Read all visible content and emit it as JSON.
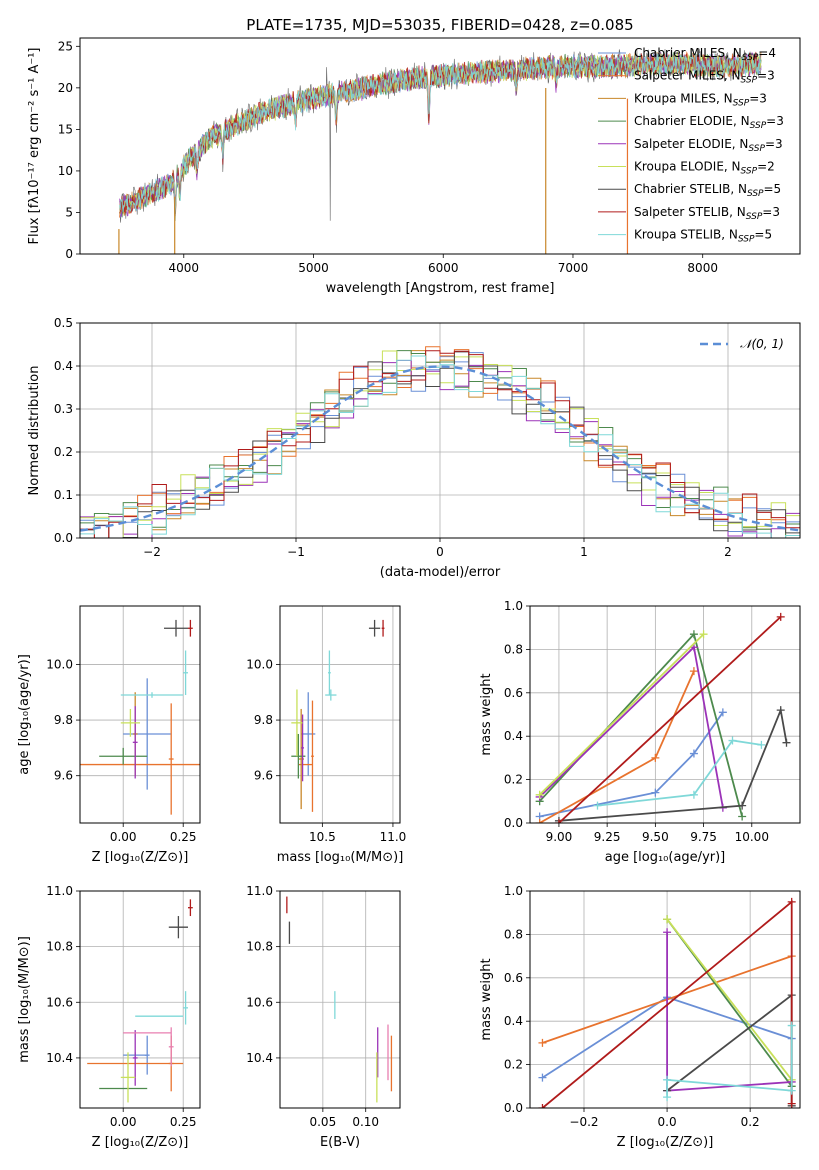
{
  "figure": {
    "title": "PLATE=1735, MJD=53035, FIBERID=0428, z=0.085"
  },
  "colors": {
    "Chabrier MILES": "#6a8fd6",
    "Salpeter MILES": "#e8732e",
    "Kroupa MILES": "#c8872a",
    "Chabrier ELODIE": "#4d8a4d",
    "Salpeter ELODIE": "#9b33b8",
    "Kroupa ELODIE": "#c8e05a",
    "Chabrier STELIB": "#4a4a4a",
    "Salpeter STELIB": "#b01b1b",
    "Kroupa STELIB": "#7fd8d8",
    "gaussian": "#5b8ed6",
    "grid": "#b0b0b0"
  },
  "chart_data": [
    {
      "id": "spectrum",
      "type": "line",
      "title": "PLATE=1735, MJD=53035, FIBERID=0428, z=0.085",
      "xlabel": "wavelength [Angstrom, rest frame]",
      "ylabel": "Flux [fλ10⁻¹⁷ erg cm⁻² s⁻¹ A⁻¹]",
      "xlim": [
        3200,
        8750
      ],
      "ylim": [
        0,
        26
      ],
      "xticks": [
        "4000",
        "5000",
        "6000",
        "7000",
        "8000"
      ],
      "yticks": [
        "0",
        "5",
        "10",
        "15",
        "20",
        "25"
      ],
      "grid": false,
      "legend_position": "right",
      "legend": [
        {
          "label": "Chabrier MILES, N",
          "sub": "SSP",
          "tail": "=4",
          "color": "#6a8fd6"
        },
        {
          "label": "Salpeter MILES, N",
          "sub": "SSP",
          "tail": "=3",
          "color": "#e8732e"
        },
        {
          "label": "Kroupa MILES, N",
          "sub": "SSP",
          "tail": "=3",
          "color": "#c8872a"
        },
        {
          "label": "Chabrier ELODIE, N",
          "sub": "SSP",
          "tail": "=3",
          "color": "#4d8a4d"
        },
        {
          "label": "Salpeter ELODIE, N",
          "sub": "SSP",
          "tail": "=3",
          "color": "#9b33b8"
        },
        {
          "label": "Kroupa ELODIE, N",
          "sub": "SSP",
          "tail": "=2",
          "color": "#c8e05a"
        },
        {
          "label": "Chabrier STELIB, N",
          "sub": "SSP",
          "tail": "=5",
          "color": "#4a4a4a"
        },
        {
          "label": "Salpeter STELIB, N",
          "sub": "SSP",
          "tail": "=3",
          "color": "#b01b1b"
        },
        {
          "label": "Kroupa STELIB, N",
          "sub": "SSP",
          "tail": "=5",
          "color": "#7fd8d8"
        }
      ],
      "continuum": {
        "x": [
          3500,
          3700,
          3900,
          4050,
          4200,
          4400,
          4600,
          4800,
          5000,
          5200,
          5400,
          5600,
          5800,
          6000,
          6200,
          6400,
          6600,
          6800,
          7000,
          7200,
          7400,
          7600,
          7800,
          8000,
          8200,
          8400
        ],
        "y": [
          5.5,
          7.0,
          8.5,
          11.5,
          14.0,
          15.5,
          17.0,
          18.0,
          18.8,
          19.3,
          20.0,
          20.7,
          21.2,
          21.5,
          21.8,
          22.0,
          22.2,
          22.5,
          22.6,
          22.6,
          22.7,
          22.8,
          22.9,
          22.7,
          22.6,
          22.9
        ]
      },
      "absorption_dips": [
        [
          3934,
          4
        ],
        [
          3969,
          3
        ],
        [
          4102,
          2.5
        ],
        [
          4300,
          3
        ],
        [
          4861,
          2
        ],
        [
          5175,
          3
        ],
        [
          5890,
          5
        ],
        [
          6563,
          2
        ],
        [
          6870,
          2
        ]
      ],
      "spikes": [
        [
          5130,
          3
        ],
        [
          5100,
          21.5
        ],
        [
          6620,
          22.7
        ]
      ]
    },
    {
      "id": "residuals",
      "type": "line",
      "xlabel": "(data-model)/error",
      "ylabel": "Normed distribution",
      "xlim": [
        -2.5,
        2.5
      ],
      "ylim": [
        0,
        0.5
      ],
      "xticks": [
        "−2",
        "−1",
        "0",
        "1",
        "2"
      ],
      "yticks": [
        "0.0",
        "0.1",
        "0.2",
        "0.3",
        "0.4",
        "0.5"
      ],
      "grid": true,
      "legend_position": "top-right",
      "legend": [
        {
          "label": "𝒩(0, 1)",
          "style": "dashed",
          "color": "#5b8ed6"
        }
      ],
      "series": [
        {
          "color": "#6a8fd6",
          "shift": 0.0,
          "phase": 0.0
        },
        {
          "color": "#e8732e",
          "shift": 0.01,
          "phase": 1.1
        },
        {
          "color": "#c8872a",
          "shift": -0.005,
          "phase": 2.3
        },
        {
          "color": "#4d8a4d",
          "shift": 0.005,
          "phase": 3.1
        },
        {
          "color": "#9b33b8",
          "shift": -0.01,
          "phase": 4.2
        },
        {
          "color": "#c8e05a",
          "shift": 0.008,
          "phase": 5.0
        },
        {
          "color": "#4a4a4a",
          "shift": -0.003,
          "phase": 5.8
        },
        {
          "color": "#b01b1b",
          "shift": 0.012,
          "phase": 0.6
        },
        {
          "color": "#7fd8d8",
          "shift": -0.008,
          "phase": 2.9
        }
      ]
    },
    {
      "id": "age-vs-Z",
      "type": "scatter",
      "xlabel": "Z [log₁₀(Z/Z⊙)]",
      "ylabel": "age  [log₁₀(age/yr)]",
      "xlim": [
        -0.18,
        0.32
      ],
      "ylim": [
        9.43,
        10.21
      ],
      "xticks": [
        "0.00",
        "0.25"
      ],
      "yticks": [
        "9.6",
        "9.8",
        "10.0"
      ],
      "grid": true,
      "points": [
        {
          "x": 0.1,
          "y": 9.75,
          "xerr": 0.1,
          "yerr": 0.2,
          "color": "#6a8fd6"
        },
        {
          "x": 0.1,
          "y": 9.64,
          "xerr": 0.3,
          "yerr": 0.0,
          "color": "#e8732e"
        },
        {
          "x": 0.2,
          "y": 9.66,
          "xerr": 0.01,
          "yerr": 0.2,
          "color": "#e8732e"
        },
        {
          "x": 0.05,
          "y": 9.75,
          "xerr": 0.01,
          "yerr": 0.15,
          "color": "#c8872a"
        },
        {
          "x": 0.0,
          "y": 9.67,
          "xerr": 0.1,
          "yerr": 0.03,
          "color": "#4d8a4d"
        },
        {
          "x": 0.05,
          "y": 9.72,
          "xerr": 0.01,
          "yerr": 0.13,
          "color": "#9b33b8"
        },
        {
          "x": 0.03,
          "y": 9.79,
          "xerr": 0.04,
          "yerr": 0.05,
          "color": "#c8e05a"
        },
        {
          "x": 0.22,
          "y": 10.13,
          "xerr": 0.05,
          "yerr": 0.03,
          "color": "#4a4a4a"
        },
        {
          "x": 0.28,
          "y": 10.13,
          "xerr": 0.01,
          "yerr": 0.03,
          "color": "#b01b1b"
        },
        {
          "x": 0.12,
          "y": 9.89,
          "xerr": 0.13,
          "yerr": 0.01,
          "color": "#7fd8d8"
        },
        {
          "x": 0.26,
          "y": 9.97,
          "xerr": 0.01,
          "yerr": 0.08,
          "color": "#7fd8d8"
        }
      ]
    },
    {
      "id": "age-vs-mass",
      "type": "scatter",
      "xlabel": "mass [log₁₀(M/M⊙)]",
      "xlim": [
        10.2,
        11.05
      ],
      "ylim": [
        9.43,
        10.21
      ],
      "xticks": [
        "10.5",
        "11.0"
      ],
      "yticks": [
        "9.6",
        "9.8",
        "10.0"
      ],
      "grid": true,
      "points": [
        {
          "x": 10.4,
          "y": 9.75,
          "xerr": 0.05,
          "yerr": 0.15,
          "color": "#6a8fd6"
        },
        {
          "x": 10.38,
          "y": 9.64,
          "xerr": 0.05,
          "yerr": 0.0,
          "color": "#e8732e"
        },
        {
          "x": 10.43,
          "y": 9.67,
          "xerr": 0.01,
          "yerr": 0.2,
          "color": "#e8732e"
        },
        {
          "x": 10.35,
          "y": 9.66,
          "xerr": 0.02,
          "yerr": 0.18,
          "color": "#c8872a"
        },
        {
          "x": 10.33,
          "y": 9.67,
          "xerr": 0.05,
          "yerr": 0.08,
          "color": "#4d8a4d"
        },
        {
          "x": 10.36,
          "y": 9.7,
          "xerr": 0.01,
          "yerr": 0.12,
          "color": "#9b33b8"
        },
        {
          "x": 10.32,
          "y": 9.79,
          "xerr": 0.04,
          "yerr": 0.12,
          "color": "#c8e05a"
        },
        {
          "x": 10.87,
          "y": 10.13,
          "xerr": 0.04,
          "yerr": 0.03,
          "color": "#4a4a4a"
        },
        {
          "x": 10.93,
          "y": 10.13,
          "xerr": 0.01,
          "yerr": 0.03,
          "color": "#b01b1b"
        },
        {
          "x": 10.56,
          "y": 9.89,
          "xerr": 0.04,
          "yerr": 0.02,
          "color": "#7fd8d8"
        },
        {
          "x": 10.55,
          "y": 9.97,
          "xerr": 0.01,
          "yerr": 0.08,
          "color": "#7fd8d8"
        }
      ]
    },
    {
      "id": "massweight-vs-age",
      "type": "line",
      "xlabel": "age  [log₁₀(age/yr)]",
      "ylabel": "mass weight",
      "xlim": [
        8.85,
        10.25
      ],
      "ylim": [
        0,
        1
      ],
      "xticks": [
        "9.00",
        "9.25",
        "9.50",
        "9.75",
        "10.00"
      ],
      "yticks": [
        "0.0",
        "0.2",
        "0.4",
        "0.6",
        "0.8",
        "1.0"
      ],
      "grid": true,
      "series": [
        {
          "color": "#6a8fd6",
          "x": [
            8.9,
            9.5,
            9.7,
            9.85
          ],
          "y": [
            0.03,
            0.14,
            0.32,
            0.51
          ]
        },
        {
          "color": "#e8732e",
          "x": [
            8.9,
            9.5,
            9.7
          ],
          "y": [
            0.0,
            0.3,
            0.7
          ]
        },
        {
          "color": "#4d8a4d",
          "x": [
            8.9,
            9.7,
            9.95
          ],
          "y": [
            0.1,
            0.87,
            0.03
          ]
        },
        {
          "color": "#9b33b8",
          "x": [
            8.9,
            9.7,
            9.85
          ],
          "y": [
            0.12,
            0.81,
            0.07
          ]
        },
        {
          "color": "#c8e05a",
          "x": [
            8.9,
            9.75
          ],
          "y": [
            0.13,
            0.87
          ]
        },
        {
          "color": "#4a4a4a",
          "x": [
            9.0,
            9.95,
            10.15,
            10.18
          ],
          "y": [
            0.01,
            0.08,
            0.52,
            0.37
          ]
        },
        {
          "color": "#b01b1b",
          "x": [
            9.0,
            10.15
          ],
          "y": [
            0.0,
            0.95
          ]
        },
        {
          "color": "#7fd8d8",
          "x": [
            9.2,
            9.7,
            9.9,
            10.05
          ],
          "y": [
            0.08,
            0.13,
            0.38,
            0.36
          ]
        }
      ]
    },
    {
      "id": "mass-vs-Z",
      "type": "scatter",
      "xlabel": "Z [log₁₀(Z/Z⊙)]",
      "ylabel": "mass [log₁₀(M/M⊙)]",
      "xlim": [
        -0.18,
        0.32
      ],
      "ylim": [
        10.22,
        11.0
      ],
      "xticks": [
        "0.00",
        "0.25"
      ],
      "yticks": [
        "10.4",
        "10.6",
        "10.8",
        "11.0"
      ],
      "grid": true,
      "points": [
        {
          "x": 0.05,
          "y": 10.41,
          "xerr": 0.05,
          "yerr": 0.01,
          "color": "#6a8fd6"
        },
        {
          "x": 0.1,
          "y": 10.41,
          "xerr": 0.01,
          "yerr": 0.07,
          "color": "#6a8fd6"
        },
        {
          "x": 0.05,
          "y": 10.38,
          "xerr": 0.2,
          "yerr": 0.0,
          "color": "#e8732e"
        },
        {
          "x": 0.2,
          "y": 10.38,
          "xerr": 0.01,
          "yerr": 0.1,
          "color": "#e8732e"
        },
        {
          "x": 0.0,
          "y": 10.29,
          "xerr": 0.1,
          "yerr": 0.0,
          "color": "#4d8a4d"
        },
        {
          "x": 0.05,
          "y": 10.4,
          "xerr": 0.01,
          "yerr": 0.1,
          "color": "#9b33b8"
        },
        {
          "x": 0.1,
          "y": 10.49,
          "xerr": 0.1,
          "yerr": 0.0,
          "color": "#e87fb0"
        },
        {
          "x": 0.2,
          "y": 10.44,
          "xerr": 0.01,
          "yerr": 0.07,
          "color": "#e87fb0"
        },
        {
          "x": 0.02,
          "y": 10.33,
          "xerr": 0.03,
          "yerr": 0.09,
          "color": "#c8e05a"
        },
        {
          "x": 0.23,
          "y": 10.87,
          "xerr": 0.04,
          "yerr": 0.04,
          "color": "#4a4a4a"
        },
        {
          "x": 0.28,
          "y": 10.94,
          "xerr": 0.01,
          "yerr": 0.03,
          "color": "#b01b1b"
        },
        {
          "x": 0.15,
          "y": 10.55,
          "xerr": 0.1,
          "yerr": 0.0,
          "color": "#7fd8d8"
        },
        {
          "x": 0.26,
          "y": 10.58,
          "xerr": 0.01,
          "yerr": 0.06,
          "color": "#7fd8d8"
        }
      ]
    },
    {
      "id": "mass-vs-ebv",
      "type": "scatter",
      "xlabel": "E(B-V)",
      "xlim": [
        0.0,
        0.14
      ],
      "ylim": [
        10.22,
        11.0
      ],
      "xticks": [
        "0.05",
        "0.10"
      ],
      "yticks": [
        "10.4",
        "10.6",
        "10.8",
        "11.0"
      ],
      "grid": true,
      "points": [
        {
          "x": 0.008,
          "y": 10.95,
          "xerr": 0.0,
          "yerr": 0.03,
          "color": "#b01b1b"
        },
        {
          "x": 0.011,
          "y": 10.85,
          "xerr": 0.0,
          "yerr": 0.04,
          "color": "#4a4a4a"
        },
        {
          "x": 0.064,
          "y": 10.59,
          "xerr": 0.0,
          "yerr": 0.05,
          "color": "#7fd8d8"
        },
        {
          "x": 0.114,
          "y": 10.42,
          "xerr": 0.0,
          "yerr": 0.09,
          "color": "#9b33b8"
        },
        {
          "x": 0.113,
          "y": 10.33,
          "xerr": 0.0,
          "yerr": 0.09,
          "color": "#c8e05a"
        },
        {
          "x": 0.126,
          "y": 10.42,
          "xerr": 0.0,
          "yerr": 0.1,
          "color": "#e87fb0"
        },
        {
          "x": 0.13,
          "y": 10.38,
          "xerr": 0.0,
          "yerr": 0.1,
          "color": "#e8732e"
        }
      ]
    },
    {
      "id": "massweight-vs-Z",
      "type": "line",
      "xlabel": "Z [log₁₀(Z/Z⊙)]",
      "ylabel": "mass weight",
      "xlim": [
        -0.33,
        0.32
      ],
      "ylim": [
        0,
        1
      ],
      "xticks": [
        "−0.2",
        "0.0",
        "0.2"
      ],
      "yticks": [
        "0.0",
        "0.2",
        "0.4",
        "0.6",
        "0.8",
        "1.0"
      ],
      "grid": true,
      "series": [
        {
          "color": "#6a8fd6",
          "x": [
            -0.3,
            0.0,
            0.3
          ],
          "y": [
            0.14,
            0.51,
            0.32
          ]
        },
        {
          "color": "#e8732e",
          "x": [
            -0.3,
            0.3
          ],
          "y": [
            0.3,
            0.7
          ]
        },
        {
          "color": "#4d8a4d",
          "x": [
            0.0,
            0.3
          ],
          "y": [
            0.87,
            0.1
          ]
        },
        {
          "color": "#9b33b8",
          "x": [
            0.0,
            0.0,
            0.3
          ],
          "y": [
            0.81,
            0.08,
            0.12
          ]
        },
        {
          "color": "#c8e05a",
          "x": [
            0.0,
            0.3
          ],
          "y": [
            0.87,
            0.13
          ]
        },
        {
          "color": "#4a4a4a",
          "x": [
            0.0,
            0.3,
            0.3
          ],
          "y": [
            0.08,
            0.52,
            0.01
          ]
        },
        {
          "color": "#b01b1b",
          "x": [
            -0.3,
            0.3,
            0.3
          ],
          "y": [
            0.0,
            0.95,
            0.02
          ]
        },
        {
          "color": "#7fd8d8",
          "x": [
            0.0,
            0.0,
            0.3,
            0.3
          ],
          "y": [
            0.05,
            0.13,
            0.08,
            0.38
          ]
        }
      ]
    }
  ]
}
